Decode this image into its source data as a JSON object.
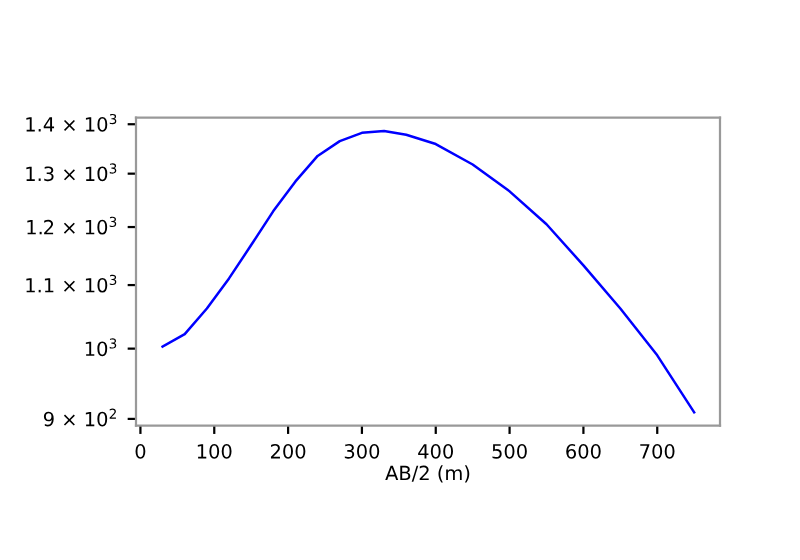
{
  "chart_data": {
    "type": "line",
    "xlabel": "AB/2 (m)",
    "log": "y",
    "x": [
      30,
      60,
      90,
      120,
      150,
      180,
      210,
      240,
      270,
      300,
      330,
      360,
      400,
      450,
      500,
      550,
      600,
      650,
      700,
      750
    ],
    "series": [
      {
        "color": "#0000ff",
        "values": [
          1003,
          1022,
          1062,
          1111,
          1168,
          1229,
          1285,
          1335,
          1365,
          1382,
          1386,
          1378,
          1359,
          1318,
          1266,
          1205,
          1133,
          1062,
          990,
          909
        ]
      }
    ],
    "xlim": [
      -6,
      785
    ],
    "ylim": [
      891,
      1414
    ],
    "xticks": [
      0,
      100,
      200,
      300,
      400,
      500,
      600,
      700
    ],
    "yticks": [
      {
        "value": 900,
        "label": "9 × 10$^{2}$"
      },
      {
        "value": 1000,
        "label": "10$^{3}$"
      },
      {
        "value": 1100,
        "label": "1.1 × 10$^{3}$"
      },
      {
        "value": 1200,
        "label": "1.2 × 10$^{3}$"
      },
      {
        "value": 1300,
        "label": "1.3 × 10$^{3}$"
      },
      {
        "value": 1400,
        "label": "1.4 × 10$^{3}$"
      }
    ],
    "grid": false,
    "legend": false
  }
}
